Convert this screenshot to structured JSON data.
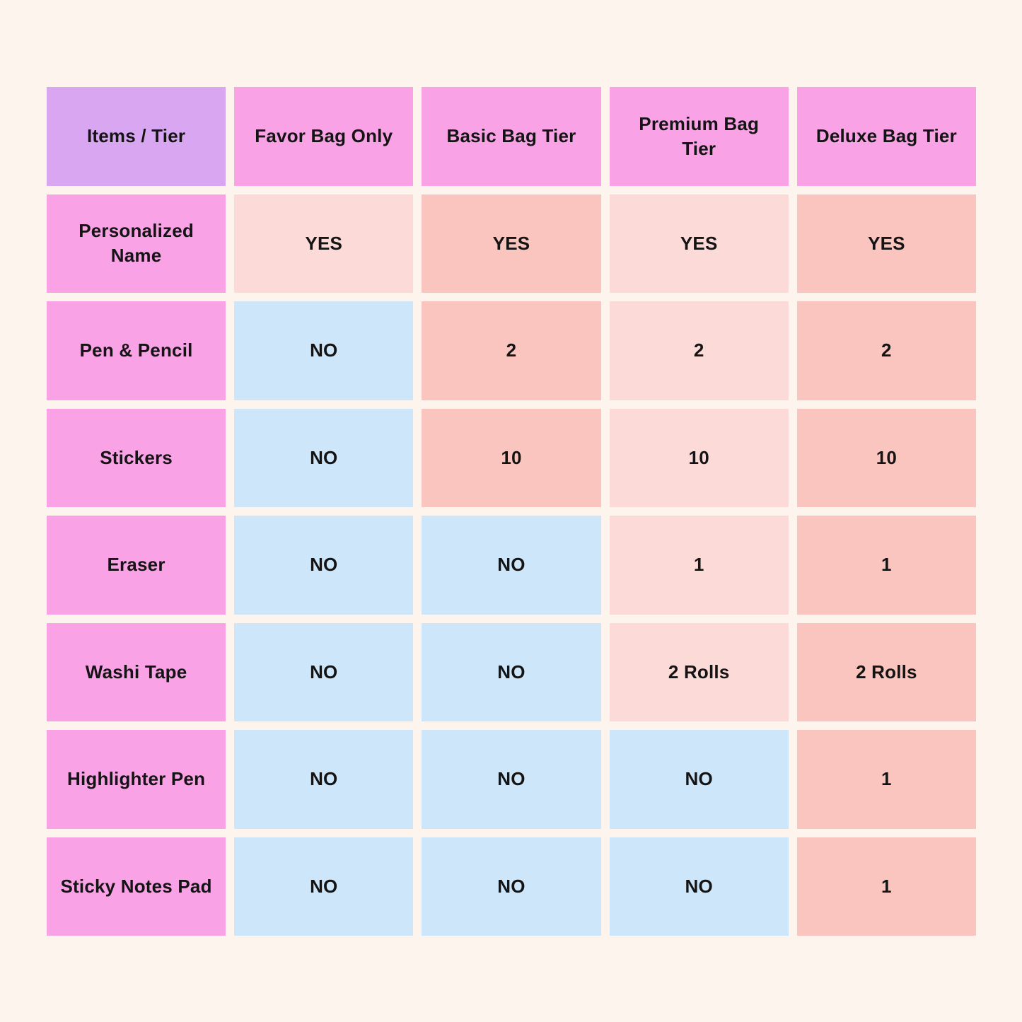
{
  "table": {
    "corner_label": "Items / Tier",
    "columns": [
      "Favor Bag Only",
      "Basic Bag Tier",
      "Premium Bag Tier",
      "Deluxe Bag Tier"
    ],
    "rows": [
      {
        "label": "Personalized Name",
        "cells": [
          {
            "text": "YES",
            "type": "light-pink"
          },
          {
            "text": "YES",
            "type": "salmon"
          },
          {
            "text": "YES",
            "type": "light-pink"
          },
          {
            "text": "YES",
            "type": "salmon"
          }
        ]
      },
      {
        "label": "Pen & Pencil",
        "cells": [
          {
            "text": "NO",
            "type": "blue"
          },
          {
            "text": "2",
            "type": "salmon"
          },
          {
            "text": "2",
            "type": "light-pink"
          },
          {
            "text": "2",
            "type": "salmon"
          }
        ]
      },
      {
        "label": "Stickers",
        "cells": [
          {
            "text": "NO",
            "type": "blue"
          },
          {
            "text": "10",
            "type": "salmon"
          },
          {
            "text": "10",
            "type": "light-pink"
          },
          {
            "text": "10",
            "type": "salmon"
          }
        ]
      },
      {
        "label": "Eraser",
        "cells": [
          {
            "text": "NO",
            "type": "blue"
          },
          {
            "text": "NO",
            "type": "blue"
          },
          {
            "text": "1",
            "type": "light-pink"
          },
          {
            "text": "1",
            "type": "salmon"
          }
        ]
      },
      {
        "label": "Washi Tape",
        "cells": [
          {
            "text": "NO",
            "type": "blue"
          },
          {
            "text": "NO",
            "type": "blue"
          },
          {
            "text": "2 Rolls",
            "type": "light-pink"
          },
          {
            "text": "2 Rolls",
            "type": "salmon"
          }
        ]
      },
      {
        "label": "Highlighter Pen",
        "cells": [
          {
            "text": "NO",
            "type": "blue"
          },
          {
            "text": "NO",
            "type": "blue"
          },
          {
            "text": "NO",
            "type": "blue"
          },
          {
            "text": "1",
            "type": "salmon"
          }
        ]
      },
      {
        "label": "Sticky Notes Pad",
        "cells": [
          {
            "text": "NO",
            "type": "blue"
          },
          {
            "text": "NO",
            "type": "blue"
          },
          {
            "text": "NO",
            "type": "blue"
          },
          {
            "text": "1",
            "type": "salmon"
          }
        ]
      }
    ]
  },
  "colors": {
    "background": "#fdf5ed",
    "corner_header": "#d9a7f2",
    "header_pink": "#f9a2e5",
    "cell_light_pink": "#fcdad8",
    "cell_salmon": "#fac5be",
    "cell_blue": "#cee6f9",
    "text": "#141414"
  },
  "chart_data": {
    "type": "table",
    "columns": [
      "Items / Tier",
      "Favor Bag Only",
      "Basic Bag Tier",
      "Premium Bag Tier",
      "Deluxe Bag Tier"
    ],
    "rows": [
      [
        "Personalized Name",
        "YES",
        "YES",
        "YES",
        "YES"
      ],
      [
        "Pen & Pencil",
        "NO",
        "2",
        "2",
        "2"
      ],
      [
        "Stickers",
        "NO",
        "10",
        "10",
        "10"
      ],
      [
        "Eraser",
        "NO",
        "NO",
        "1",
        "1"
      ],
      [
        "Washi Tape",
        "NO",
        "NO",
        "2 Rolls",
        "2 Rolls"
      ],
      [
        "Highlighter Pen",
        "NO",
        "NO",
        "NO",
        "1"
      ],
      [
        "Sticky Notes Pad",
        "NO",
        "NO",
        "NO",
        "1"
      ]
    ],
    "legend_position": "none",
    "grid": "off"
  }
}
